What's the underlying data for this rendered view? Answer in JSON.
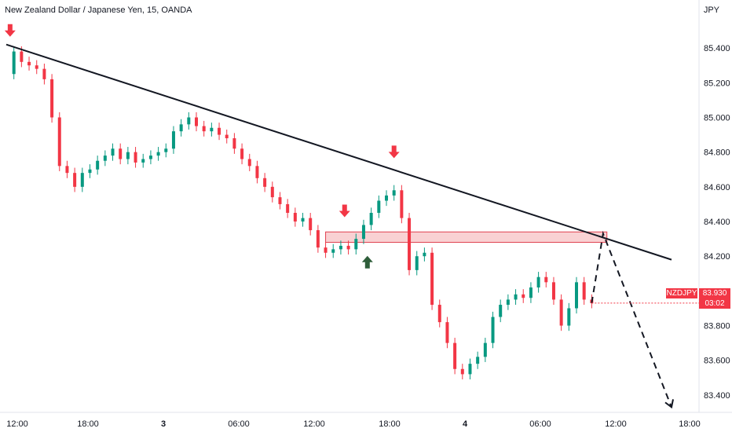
{
  "header": {
    "symbol_title": "New Zealand Dollar / Japanese Yen, 15, OANDA",
    "currency": "JPY"
  },
  "price_label": {
    "symbol": "NZDJPY",
    "price": "83.930",
    "countdown": "03:02",
    "color": "#f23645"
  },
  "colors": {
    "up": "#089981",
    "down": "#f23645",
    "trendline": "#131722",
    "zone_fill": "#f7c5c8",
    "zone_stroke": "#e0404f",
    "arrow_down": "#f23645",
    "arrow_up": "#2e5e3a"
  },
  "chart_data": {
    "type": "candlestick",
    "title": "New Zealand Dollar / Japanese Yen, 15, OANDA",
    "ylabel": "JPY",
    "ylim": [
      83.3,
      85.55
    ],
    "y_ticks": [
      "85.400",
      "85.200",
      "85.000",
      "84.800",
      "84.600",
      "84.400",
      "84.200",
      "84.000",
      "83.800",
      "83.600",
      "83.400"
    ],
    "x_ticks": [
      "12:00",
      "18:00",
      "3",
      "06:00",
      "12:00",
      "18:00",
      "4",
      "06:00",
      "12:00",
      "18:00"
    ],
    "series": [
      {
        "name": "NZDJPY",
        "points": [
          [
            0,
            85.25
          ],
          [
            2,
            85.38
          ],
          [
            4,
            85.32
          ],
          [
            6,
            85.3
          ],
          [
            8,
            85.28
          ],
          [
            10,
            85.22
          ],
          [
            12,
            85.0
          ],
          [
            14,
            84.72
          ],
          [
            16,
            84.68
          ],
          [
            18,
            84.6
          ],
          [
            20,
            84.68
          ],
          [
            22,
            84.7
          ],
          [
            24,
            84.75
          ],
          [
            26,
            84.78
          ],
          [
            28,
            84.82
          ],
          [
            30,
            84.76
          ],
          [
            32,
            84.8
          ],
          [
            34,
            84.74
          ],
          [
            36,
            84.76
          ],
          [
            38,
            84.78
          ],
          [
            40,
            84.8
          ],
          [
            42,
            84.82
          ],
          [
            44,
            84.92
          ],
          [
            46,
            84.96
          ],
          [
            48,
            85.0
          ],
          [
            50,
            84.95
          ],
          [
            52,
            84.92
          ],
          [
            54,
            84.94
          ],
          [
            56,
            84.9
          ],
          [
            58,
            84.88
          ],
          [
            60,
            84.82
          ],
          [
            62,
            84.76
          ],
          [
            64,
            84.72
          ],
          [
            66,
            84.65
          ],
          [
            68,
            84.6
          ],
          [
            70,
            84.54
          ],
          [
            72,
            84.5
          ],
          [
            74,
            84.45
          ],
          [
            76,
            84.4
          ],
          [
            78,
            84.42
          ],
          [
            80,
            84.35
          ],
          [
            82,
            84.25
          ],
          [
            84,
            84.22
          ],
          [
            86,
            84.24
          ],
          [
            88,
            84.26
          ],
          [
            90,
            84.24
          ],
          [
            92,
            84.3
          ],
          [
            94,
            84.38
          ],
          [
            96,
            84.45
          ],
          [
            98,
            84.52
          ],
          [
            100,
            84.55
          ],
          [
            102,
            84.58
          ],
          [
            104,
            84.42
          ],
          [
            106,
            84.12
          ],
          [
            108,
            84.2
          ],
          [
            110,
            84.22
          ],
          [
            112,
            83.92
          ],
          [
            114,
            83.82
          ],
          [
            116,
            83.7
          ],
          [
            118,
            83.55
          ],
          [
            120,
            83.52
          ],
          [
            122,
            83.58
          ],
          [
            124,
            83.62
          ],
          [
            126,
            83.7
          ],
          [
            128,
            83.85
          ],
          [
            130,
            83.92
          ],
          [
            132,
            83.95
          ],
          [
            134,
            83.98
          ],
          [
            136,
            83.96
          ],
          [
            138,
            84.02
          ],
          [
            140,
            84.08
          ],
          [
            142,
            84.05
          ],
          [
            144,
            83.95
          ],
          [
            146,
            83.8
          ],
          [
            148,
            83.9
          ],
          [
            150,
            84.05
          ],
          [
            152,
            83.95
          ],
          [
            154,
            83.93
          ]
        ]
      }
    ],
    "annotations": {
      "trendline": {
        "from": [
          0,
          85.42
        ],
        "to": [
          175,
          84.18
        ]
      },
      "zone": {
        "x0": 84,
        "x1": 158,
        "y_low": 84.28,
        "y_high": 84.34
      },
      "projection": [
        [
          154,
          83.93
        ],
        [
          157,
          84.33
        ],
        [
          175,
          83.33
        ]
      ],
      "down_arrows": [
        [
          1,
          85.42
        ],
        [
          89,
          84.38
        ],
        [
          102,
          84.72
        ]
      ],
      "up_arrows": [
        [
          95,
          84.22
        ]
      ]
    }
  }
}
